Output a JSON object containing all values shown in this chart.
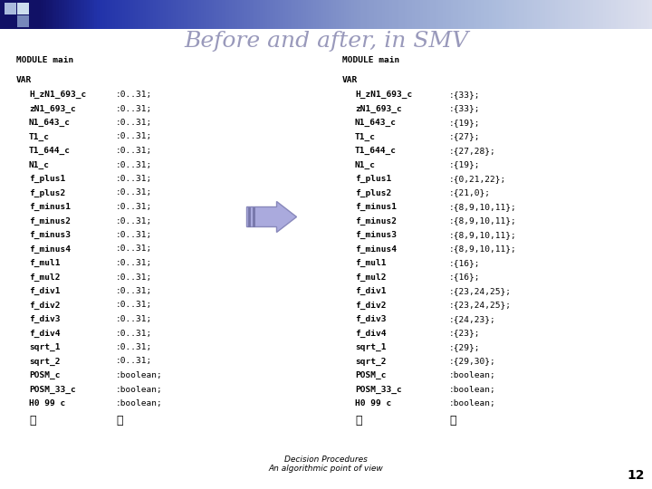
{
  "title": "Before and after, in SMV",
  "title_color": "#9999bb",
  "title_fontsize": 18,
  "bg_color": "#ffffff",
  "footer_text": "Decision Procedures\nAn algorithmic point of view",
  "footer_page": "12",
  "before_header": "MODULE main",
  "after_header": "MODULE main",
  "var_label": "VAR",
  "before_vars": [
    [
      "H_zN1_693_c",
      ":0..31;"
    ],
    [
      "zN1_693_c",
      ":0..31;"
    ],
    [
      "N1_643_c",
      ":0..31;"
    ],
    [
      "T1_c",
      ":0..31;"
    ],
    [
      "T1_644_c",
      ":0..31;"
    ],
    [
      "N1_c",
      ":0..31;"
    ],
    [
      "f_plus1",
      ":0..31;"
    ],
    [
      "f_plus2",
      ":0..31;"
    ],
    [
      "f_minus1",
      ":0..31;"
    ],
    [
      "f_minus2",
      ":0..31;"
    ],
    [
      "f_minus3",
      ":0..31;"
    ],
    [
      "f_minus4",
      ":0..31;"
    ],
    [
      "f_mul1",
      ":0..31;"
    ],
    [
      "f_mul2",
      ":0..31;"
    ],
    [
      "f_div1",
      ":0..31;"
    ],
    [
      "f_div2",
      ":0..31;"
    ],
    [
      "f_div3",
      ":0..31;"
    ],
    [
      "f_div4",
      ":0..31;"
    ],
    [
      "sqrt_1",
      ":0..31;"
    ],
    [
      "sqrt_2",
      ":0..31;"
    ],
    [
      "POSM_c",
      ":boolean;"
    ],
    [
      "POSM_33_c",
      ":boolean;"
    ],
    [
      "H0 99 c",
      ":boolean;"
    ]
  ],
  "after_vars": [
    [
      "H_zN1_693_c",
      ":{33};"
    ],
    [
      "zN1_693_c",
      ":{33};"
    ],
    [
      "N1_643_c",
      ":{19};"
    ],
    [
      "T1_c",
      ":{27};"
    ],
    [
      "T1_644_c",
      ":{27,28};"
    ],
    [
      "N1_c",
      ":{19};"
    ],
    [
      "f_plus1",
      ":{0,21,22};"
    ],
    [
      "f_plus2",
      ":{21,0};"
    ],
    [
      "f_minus1",
      ":{8,9,10,11};"
    ],
    [
      "f_minus2",
      ":{8,9,10,11};"
    ],
    [
      "f_minus3",
      ":{8,9,10,11};"
    ],
    [
      "f_minus4",
      ":{8,9,10,11};"
    ],
    [
      "f_mul1",
      ":{16};"
    ],
    [
      "f_mul2",
      ":{16};"
    ],
    [
      "f_div1",
      ":{23,24,25};"
    ],
    [
      "f_div2",
      ":{23,24,25};"
    ],
    [
      "f_div3",
      ":{24,23};"
    ],
    [
      "f_div4",
      ":{23};"
    ],
    [
      "sqrt_1",
      ":{29};"
    ],
    [
      "sqrt_2",
      ":{29,30};"
    ],
    [
      "POSM_c",
      ":boolean;"
    ],
    [
      "POSM_33_c",
      ":boolean;"
    ],
    [
      "H0 99 c",
      ":boolean;"
    ]
  ],
  "arrow_color": "#aaaadd",
  "arrow_border": "#8888bb",
  "bar_left_color": "#111166",
  "bar_right_color": "#e0e0ee",
  "header_bar_stops": [
    [
      0.0,
      "#111166"
    ],
    [
      0.06,
      "#111166"
    ],
    [
      0.15,
      "#2233aa"
    ],
    [
      0.35,
      "#5566bb"
    ],
    [
      0.55,
      "#8899cc"
    ],
    [
      0.75,
      "#aabbdd"
    ],
    [
      1.0,
      "#dde0ee"
    ]
  ],
  "sq1_color": "#111166",
  "sq2_color": "#7788bb",
  "sq3_color": "#aabbdd",
  "sq4_color": "#ccddee"
}
